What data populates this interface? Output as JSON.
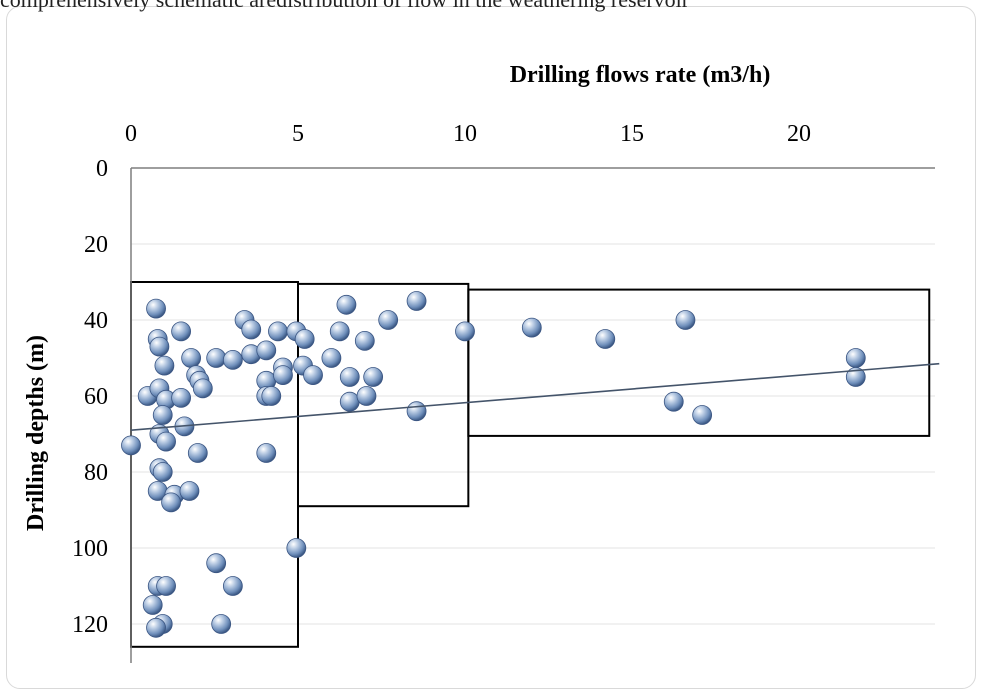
{
  "top_caption": "comprehensively schematic aredistribution of flow in the weathering reservoir",
  "chart_data": {
    "type": "scatter",
    "title": "",
    "xlabel": "Drilling  flows rate (m3/h)",
    "ylabel": "Drilling  depths (m)",
    "xlim": [
      0,
      24.2
    ],
    "ylim": [
      0,
      130
    ],
    "y_inverted": true,
    "x_axis_position": "top",
    "x_ticks": [
      0,
      5,
      10,
      15,
      20
    ],
    "y_ticks": [
      0,
      20,
      40,
      60,
      80,
      100,
      120
    ],
    "grid": "horizontal",
    "point_color": "#7f9cc4",
    "trendline": {
      "color": "#44546a",
      "from": [
        0,
        69
      ],
      "to": [
        24.2,
        51.5
      ]
    },
    "boxes": [
      {
        "x": [
          0,
          5
        ],
        "y": [
          30,
          126
        ]
      },
      {
        "x": [
          5,
          10.1
        ],
        "y": [
          30.5,
          89
        ]
      },
      {
        "x": [
          10.1,
          23.9
        ],
        "y": [
          32,
          70.5
        ]
      }
    ],
    "points": [
      [
        0.75,
        37
      ],
      [
        0.8,
        45
      ],
      [
        0.85,
        47
      ],
      [
        1.0,
        52
      ],
      [
        1.5,
        43
      ],
      [
        0.5,
        60
      ],
      [
        0.85,
        58
      ],
      [
        1.05,
        61
      ],
      [
        1.5,
        60.5
      ],
      [
        0.95,
        65
      ],
      [
        0.85,
        70
      ],
      [
        1.05,
        72
      ],
      [
        1.6,
        68
      ],
      [
        0.0,
        73
      ],
      [
        0.85,
        79
      ],
      [
        0.95,
        80
      ],
      [
        0.8,
        85
      ],
      [
        1.3,
        86
      ],
      [
        1.75,
        85
      ],
      [
        1.2,
        88
      ],
      [
        1.8,
        50
      ],
      [
        1.95,
        54.5
      ],
      [
        2.05,
        56
      ],
      [
        2.15,
        58
      ],
      [
        2.0,
        75
      ],
      [
        2.55,
        50
      ],
      [
        3.05,
        50.5
      ],
      [
        3.4,
        40
      ],
      [
        3.6,
        42.5
      ],
      [
        3.6,
        49
      ],
      [
        4.05,
        48
      ],
      [
        4.05,
        56
      ],
      [
        4.05,
        60
      ],
      [
        4.2,
        60
      ],
      [
        4.05,
        75
      ],
      [
        4.4,
        43
      ],
      [
        4.55,
        52.5
      ],
      [
        4.55,
        54.5
      ],
      [
        4.95,
        43
      ],
      [
        5.2,
        45
      ],
      [
        5.15,
        52
      ],
      [
        5.45,
        54.5
      ],
      [
        6.0,
        50
      ],
      [
        6.25,
        43
      ],
      [
        6.45,
        36
      ],
      [
        6.55,
        55
      ],
      [
        6.55,
        61.5
      ],
      [
        7.0,
        45.5
      ],
      [
        7.05,
        60
      ],
      [
        7.25,
        55
      ],
      [
        7.7,
        40
      ],
      [
        8.55,
        35
      ],
      [
        8.55,
        64
      ],
      [
        10.0,
        43
      ],
      [
        12.0,
        42
      ],
      [
        14.2,
        45
      ],
      [
        16.25,
        61.5
      ],
      [
        16.6,
        40
      ],
      [
        17.1,
        65
      ],
      [
        21.7,
        50
      ],
      [
        21.7,
        55
      ],
      [
        4.95,
        100
      ],
      [
        2.55,
        104
      ],
      [
        3.05,
        110
      ],
      [
        0.8,
        110
      ],
      [
        1.05,
        110
      ],
      [
        0.65,
        115
      ],
      [
        0.95,
        120
      ],
      [
        0.75,
        121
      ],
      [
        2.7,
        120
      ]
    ]
  }
}
